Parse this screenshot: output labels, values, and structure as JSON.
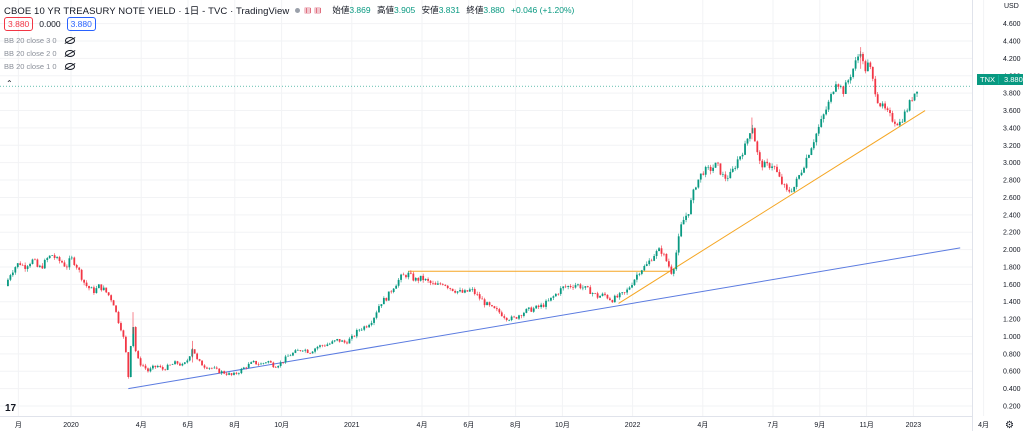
{
  "header": {
    "title": "CBOE 10 YR TREASURY NOTE YIELD · 1日 - TVC · TradingView",
    "open_label": "始値",
    "open": "3.869",
    "high_label": "高値",
    "high": "3.905",
    "low_label": "安値",
    "low": "3.831",
    "close_label": "終値",
    "close": "3.880",
    "change": "+0.046 (+1.20%)"
  },
  "quote": {
    "bid": "3.880",
    "spread": "0.000",
    "ask": "3.880"
  },
  "indicators": [
    {
      "label": "BB 20 close 3 0"
    },
    {
      "label": "BB 20 close 2 0"
    },
    {
      "label": "BB 20 close 1 0"
    }
  ],
  "collapse_icon": "chevron-up-icon",
  "price_tag": {
    "symbol": "TNX",
    "price": "3.880"
  },
  "axis": {
    "currency": "USD"
  },
  "colors": {
    "up": "#089981",
    "down": "#f23645",
    "trend_blue": "#5b7be0",
    "trend_orange": "#f5a623"
  },
  "chart_data": {
    "type": "candlestick",
    "ylim": [
      0.1,
      4.7
    ],
    "y_ticks": [
      "4.600",
      "4.400",
      "4.200",
      "4.000",
      "3.800",
      "3.600",
      "3.400",
      "3.200",
      "3.000",
      "2.800",
      "2.600",
      "2.400",
      "2.200",
      "2.000",
      "1.800",
      "1.600",
      "1.400",
      "1.200",
      "1.000",
      "0.800",
      "0.600",
      "0.400",
      "0.200"
    ],
    "x_ticks": [
      {
        "label": "月",
        "t": -2.25
      },
      {
        "label": "2020",
        "t": 0
      },
      {
        "label": "4月",
        "t": 3
      },
      {
        "label": "6月",
        "t": 5
      },
      {
        "label": "8月",
        "t": 7
      },
      {
        "label": "10月",
        "t": 9
      },
      {
        "label": "2021",
        "t": 12
      },
      {
        "label": "4月",
        "t": 15
      },
      {
        "label": "6月",
        "t": 17
      },
      {
        "label": "8月",
        "t": 19
      },
      {
        "label": "10月",
        "t": 21
      },
      {
        "label": "2022",
        "t": 24
      },
      {
        "label": "4月",
        "t": 27
      },
      {
        "label": "7月",
        "t": 30
      },
      {
        "label": "9月",
        "t": 32
      },
      {
        "label": "11月",
        "t": 34
      },
      {
        "label": "2023",
        "t": 36
      },
      {
        "label": "4月",
        "t": 39
      }
    ],
    "last_price": 3.88,
    "series": [
      {
        "t": -2.8,
        "v": 1.58
      },
      {
        "t": -2.6,
        "v": 1.72
      },
      {
        "t": -2.4,
        "v": 1.8
      },
      {
        "t": -2.2,
        "v": 1.85
      },
      {
        "t": -2.0,
        "v": 1.8
      },
      {
        "t": -1.8,
        "v": 1.85
      },
      {
        "t": -1.6,
        "v": 1.88
      },
      {
        "t": -1.4,
        "v": 1.78
      },
      {
        "t": -1.2,
        "v": 1.82
      },
      {
        "t": -1.0,
        "v": 1.9
      },
      {
        "t": -0.8,
        "v": 1.94
      },
      {
        "t": -0.6,
        "v": 1.88
      },
      {
        "t": -0.4,
        "v": 1.86
      },
      {
        "t": -0.2,
        "v": 1.8
      },
      {
        "t": 0.0,
        "v": 1.9
      },
      {
        "t": 0.2,
        "v": 1.84
      },
      {
        "t": 0.4,
        "v": 1.72
      },
      {
        "t": 0.6,
        "v": 1.6
      },
      {
        "t": 0.8,
        "v": 1.55
      },
      {
        "t": 1.0,
        "v": 1.52
      },
      {
        "t": 1.2,
        "v": 1.58
      },
      {
        "t": 1.4,
        "v": 1.54
      },
      {
        "t": 1.6,
        "v": 1.48
      },
      {
        "t": 1.8,
        "v": 1.4
      },
      {
        "t": 2.0,
        "v": 1.2
      },
      {
        "t": 2.2,
        "v": 1.05
      },
      {
        "t": 2.35,
        "v": 0.8
      },
      {
        "t": 2.45,
        "v": 0.54
      },
      {
        "t": 2.55,
        "v": 0.9
      },
      {
        "t": 2.65,
        "v": 1.15
      },
      {
        "t": 2.75,
        "v": 0.85
      },
      {
        "t": 2.9,
        "v": 0.7
      },
      {
        "t": 3.1,
        "v": 0.66
      },
      {
        "t": 3.3,
        "v": 0.6
      },
      {
        "t": 3.5,
        "v": 0.64
      },
      {
        "t": 3.7,
        "v": 0.66
      },
      {
        "t": 3.9,
        "v": 0.62
      },
      {
        "t": 4.2,
        "v": 0.66
      },
      {
        "t": 4.5,
        "v": 0.7
      },
      {
        "t": 4.8,
        "v": 0.66
      },
      {
        "t": 5.0,
        "v": 0.74
      },
      {
        "t": 5.2,
        "v": 0.88
      },
      {
        "t": 5.4,
        "v": 0.72
      },
      {
        "t": 5.7,
        "v": 0.66
      },
      {
        "t": 6.0,
        "v": 0.64
      },
      {
        "t": 6.3,
        "v": 0.6
      },
      {
        "t": 6.6,
        "v": 0.58
      },
      {
        "t": 6.9,
        "v": 0.55
      },
      {
        "t": 7.2,
        "v": 0.6
      },
      {
        "t": 7.5,
        "v": 0.66
      },
      {
        "t": 7.8,
        "v": 0.7
      },
      {
        "t": 8.1,
        "v": 0.68
      },
      {
        "t": 8.4,
        "v": 0.72
      },
      {
        "t": 8.7,
        "v": 0.66
      },
      {
        "t": 9.0,
        "v": 0.7
      },
      {
        "t": 9.3,
        "v": 0.78
      },
      {
        "t": 9.6,
        "v": 0.82
      },
      {
        "t": 9.9,
        "v": 0.86
      },
      {
        "t": 10.2,
        "v": 0.82
      },
      {
        "t": 10.5,
        "v": 0.88
      },
      {
        "t": 10.8,
        "v": 0.9
      },
      {
        "t": 11.1,
        "v": 0.92
      },
      {
        "t": 11.4,
        "v": 0.96
      },
      {
        "t": 11.7,
        "v": 0.93
      },
      {
        "t": 12.0,
        "v": 0.98
      },
      {
        "t": 12.3,
        "v": 1.08
      },
      {
        "t": 12.6,
        "v": 1.12
      },
      {
        "t": 12.9,
        "v": 1.2
      },
      {
        "t": 13.2,
        "v": 1.38
      },
      {
        "t": 13.5,
        "v": 1.45
      },
      {
        "t": 13.8,
        "v": 1.58
      },
      {
        "t": 14.1,
        "v": 1.68
      },
      {
        "t": 14.4,
        "v": 1.72
      },
      {
        "t": 14.7,
        "v": 1.65
      },
      {
        "t": 15.0,
        "v": 1.67
      },
      {
        "t": 15.3,
        "v": 1.62
      },
      {
        "t": 15.6,
        "v": 1.58
      },
      {
        "t": 15.9,
        "v": 1.62
      },
      {
        "t": 16.2,
        "v": 1.56
      },
      {
        "t": 16.5,
        "v": 1.52
      },
      {
        "t": 16.8,
        "v": 1.5
      },
      {
        "t": 17.1,
        "v": 1.54
      },
      {
        "t": 17.4,
        "v": 1.46
      },
      {
        "t": 17.7,
        "v": 1.38
      },
      {
        "t": 18.0,
        "v": 1.32
      },
      {
        "t": 18.3,
        "v": 1.28
      },
      {
        "t": 18.6,
        "v": 1.22
      },
      {
        "t": 18.9,
        "v": 1.2
      },
      {
        "t": 19.2,
        "v": 1.26
      },
      {
        "t": 19.5,
        "v": 1.3
      },
      {
        "t": 19.8,
        "v": 1.32
      },
      {
        "t": 20.1,
        "v": 1.35
      },
      {
        "t": 20.4,
        "v": 1.4
      },
      {
        "t": 20.7,
        "v": 1.48
      },
      {
        "t": 21.0,
        "v": 1.56
      },
      {
        "t": 21.3,
        "v": 1.58
      },
      {
        "t": 21.6,
        "v": 1.6
      },
      {
        "t": 21.9,
        "v": 1.56
      },
      {
        "t": 22.2,
        "v": 1.52
      },
      {
        "t": 22.5,
        "v": 1.46
      },
      {
        "t": 22.8,
        "v": 1.48
      },
      {
        "t": 23.1,
        "v": 1.42
      },
      {
        "t": 23.4,
        "v": 1.46
      },
      {
        "t": 23.7,
        "v": 1.5
      },
      {
        "t": 24.0,
        "v": 1.63
      },
      {
        "t": 24.3,
        "v": 1.76
      },
      {
        "t": 24.6,
        "v": 1.82
      },
      {
        "t": 24.9,
        "v": 1.94
      },
      {
        "t": 25.2,
        "v": 2.0
      },
      {
        "t": 25.5,
        "v": 1.84
      },
      {
        "t": 25.7,
        "v": 1.72
      },
      {
        "t": 25.9,
        "v": 2.02
      },
      {
        "t": 26.1,
        "v": 2.3
      },
      {
        "t": 26.4,
        "v": 2.45
      },
      {
        "t": 26.7,
        "v": 2.75
      },
      {
        "t": 27.0,
        "v": 2.9
      },
      {
        "t": 27.3,
        "v": 2.92
      },
      {
        "t": 27.6,
        "v": 2.98
      },
      {
        "t": 27.9,
        "v": 2.82
      },
      {
        "t": 28.2,
        "v": 2.86
      },
      {
        "t": 28.5,
        "v": 3.04
      },
      {
        "t": 28.8,
        "v": 3.18
      },
      {
        "t": 29.1,
        "v": 3.45
      },
      {
        "t": 29.4,
        "v": 3.0
      },
      {
        "t": 29.7,
        "v": 2.96
      },
      {
        "t": 30.0,
        "v": 2.98
      },
      {
        "t": 30.3,
        "v": 2.8
      },
      {
        "t": 30.6,
        "v": 2.66
      },
      {
        "t": 30.9,
        "v": 2.72
      },
      {
        "t": 31.2,
        "v": 2.9
      },
      {
        "t": 31.5,
        "v": 3.1
      },
      {
        "t": 31.8,
        "v": 3.3
      },
      {
        "t": 32.1,
        "v": 3.5
      },
      {
        "t": 32.4,
        "v": 3.7
      },
      {
        "t": 32.7,
        "v": 3.95
      },
      {
        "t": 33.0,
        "v": 3.82
      },
      {
        "t": 33.3,
        "v": 4.0
      },
      {
        "t": 33.6,
        "v": 4.2
      },
      {
        "t": 33.75,
        "v": 4.3
      },
      {
        "t": 33.9,
        "v": 4.05
      },
      {
        "t": 34.1,
        "v": 4.15
      },
      {
        "t": 34.3,
        "v": 3.9
      },
      {
        "t": 34.5,
        "v": 3.7
      },
      {
        "t": 34.8,
        "v": 3.6
      },
      {
        "t": 35.1,
        "v": 3.5
      },
      {
        "t": 35.4,
        "v": 3.45
      },
      {
        "t": 35.7,
        "v": 3.6
      },
      {
        "t": 36.0,
        "v": 3.78
      },
      {
        "t": 36.2,
        "v": 3.88
      }
    ],
    "trendlines": [
      {
        "color": "blue",
        "t1": 2.45,
        "v1": 0.4,
        "t2": 38.0,
        "v2": 2.02
      },
      {
        "color": "orange",
        "t1": 23.4,
        "v1": 1.38,
        "t2": 36.5,
        "v2": 3.6
      },
      {
        "color": "orange",
        "t1": 14.4,
        "v1": 1.75,
        "t2": 25.6,
        "v2": 1.75
      }
    ]
  }
}
